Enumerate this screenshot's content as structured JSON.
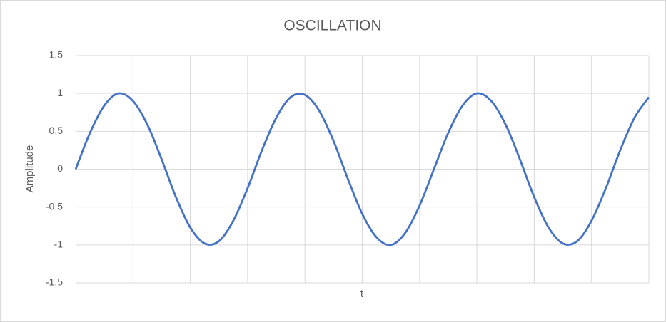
{
  "chart_data": {
    "type": "line",
    "title": "OSCILLATION",
    "x_label": "t",
    "y_label": "Amplitude",
    "categories": [
      null,
      null,
      null,
      null,
      null,
      null,
      null,
      null,
      null,
      null,
      null,
      null,
      null,
      null,
      null,
      null,
      null,
      null,
      null,
      null,
      null,
      null,
      null,
      null,
      null,
      null,
      null,
      null,
      null,
      null,
      null,
      null,
      null,
      null,
      null,
      null,
      null,
      null,
      null,
      null,
      null
    ],
    "series": [
      {
        "name": "Amplitude",
        "color": "#4472c4",
        "values": [
          0,
          0.48,
          0.84,
          1.0,
          0.9,
          0.59,
          0.13,
          -0.37,
          -0.77,
          -0.98,
          -0.95,
          -0.68,
          -0.25,
          0.25,
          0.68,
          0.95,
          0.98,
          0.77,
          0.37,
          -0.13,
          -0.59,
          -0.9,
          -1.0,
          -0.84,
          -0.48,
          0,
          0.48,
          0.84,
          1.0,
          0.9,
          0.59,
          0.13,
          -0.37,
          -0.77,
          -0.98,
          -0.95,
          -0.68,
          -0.25,
          0.25,
          0.68,
          0.95
        ]
      }
    ],
    "ylim": [
      -1.5,
      1.5
    ],
    "yticks": [
      {
        "value": -1.5,
        "label": "-1,5"
      },
      -1,
      {
        "value": -0.5,
        "label": "-0,5"
      },
      0,
      {
        "value": 0.5,
        "label": "0,5"
      },
      1,
      {
        "value": 1.5,
        "label": "1,5"
      }
    ],
    "grid": true
  }
}
